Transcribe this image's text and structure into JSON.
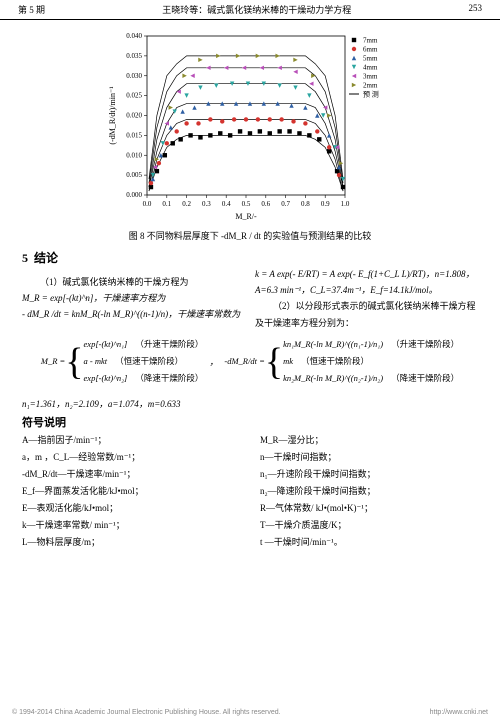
{
  "header": {
    "issue": "第 5 期",
    "title": "王晓玲等：碱式氯化镁纳米棒的干燥动力学方程",
    "page": "253"
  },
  "chart": {
    "type": "scatter-line",
    "xlabel": "M_R/-",
    "ylabel": "(-dM_R/dt)/min⁻¹",
    "xlim": [
      0,
      1.0
    ],
    "ylim": [
      0,
      0.04
    ],
    "xtick_step": 0.1,
    "yticks": [
      0.0,
      0.005,
      0.01,
      0.015,
      0.02,
      0.025,
      0.03,
      0.035,
      0.04
    ],
    "background_color": "#ffffff",
    "axis_color": "#000000",
    "tick_fontsize": 7,
    "label_fontsize": 8,
    "legend": {
      "position": "top-right",
      "items": [
        {
          "label": "7mm",
          "color": "#000000",
          "marker": "square"
        },
        {
          "label": "6mm",
          "color": "#d4342f",
          "marker": "circle"
        },
        {
          "label": "5mm",
          "color": "#2e5fa3",
          "marker": "triangle-up"
        },
        {
          "label": "4mm",
          "color": "#2aa5a0",
          "marker": "triangle-down"
        },
        {
          "label": "3mm",
          "color": "#b84fb8",
          "marker": "triangle-left"
        },
        {
          "label": "2mm",
          "color": "#8a8a2e",
          "marker": "triangle-right"
        },
        {
          "label": "预 测",
          "color": "#000000",
          "marker": "line"
        }
      ]
    },
    "series": [
      {
        "name": "7mm",
        "color": "#000000",
        "marker": "square",
        "data": [
          [
            0.02,
            0.002
          ],
          [
            0.05,
            0.006
          ],
          [
            0.09,
            0.01
          ],
          [
            0.13,
            0.013
          ],
          [
            0.17,
            0.014
          ],
          [
            0.22,
            0.015
          ],
          [
            0.27,
            0.0145
          ],
          [
            0.32,
            0.015
          ],
          [
            0.37,
            0.0155
          ],
          [
            0.42,
            0.015
          ],
          [
            0.47,
            0.016
          ],
          [
            0.52,
            0.0155
          ],
          [
            0.57,
            0.016
          ],
          [
            0.62,
            0.0155
          ],
          [
            0.67,
            0.016
          ],
          [
            0.72,
            0.016
          ],
          [
            0.77,
            0.0155
          ],
          [
            0.82,
            0.015
          ],
          [
            0.87,
            0.014
          ],
          [
            0.92,
            0.011
          ],
          [
            0.96,
            0.006
          ],
          [
            0.99,
            0.002
          ]
        ]
      },
      {
        "name": "6mm",
        "color": "#d4342f",
        "marker": "circle",
        "data": [
          [
            0.02,
            0.003
          ],
          [
            0.06,
            0.008
          ],
          [
            0.1,
            0.013
          ],
          [
            0.15,
            0.016
          ],
          [
            0.2,
            0.018
          ],
          [
            0.26,
            0.018
          ],
          [
            0.32,
            0.019
          ],
          [
            0.38,
            0.0185
          ],
          [
            0.44,
            0.019
          ],
          [
            0.5,
            0.019
          ],
          [
            0.56,
            0.019
          ],
          [
            0.62,
            0.019
          ],
          [
            0.68,
            0.019
          ],
          [
            0.74,
            0.0185
          ],
          [
            0.8,
            0.018
          ],
          [
            0.86,
            0.016
          ],
          [
            0.92,
            0.012
          ],
          [
            0.97,
            0.005
          ]
        ]
      },
      {
        "name": "5mm",
        "color": "#2e5fa3",
        "marker": "triangle-up",
        "data": [
          [
            0.03,
            0.004
          ],
          [
            0.07,
            0.01
          ],
          [
            0.12,
            0.017
          ],
          [
            0.18,
            0.021
          ],
          [
            0.24,
            0.022
          ],
          [
            0.31,
            0.023
          ],
          [
            0.38,
            0.023
          ],
          [
            0.45,
            0.023
          ],
          [
            0.52,
            0.023
          ],
          [
            0.59,
            0.023
          ],
          [
            0.66,
            0.023
          ],
          [
            0.73,
            0.0225
          ],
          [
            0.8,
            0.022
          ],
          [
            0.86,
            0.02
          ],
          [
            0.92,
            0.015
          ],
          [
            0.97,
            0.007
          ]
        ]
      },
      {
        "name": "4mm",
        "color": "#2aa5a0",
        "marker": "triangle-down",
        "data": [
          [
            0.03,
            0.005
          ],
          [
            0.08,
            0.013
          ],
          [
            0.14,
            0.021
          ],
          [
            0.2,
            0.025
          ],
          [
            0.27,
            0.027
          ],
          [
            0.35,
            0.0275
          ],
          [
            0.43,
            0.028
          ],
          [
            0.51,
            0.028
          ],
          [
            0.59,
            0.028
          ],
          [
            0.67,
            0.0275
          ],
          [
            0.75,
            0.027
          ],
          [
            0.82,
            0.025
          ],
          [
            0.89,
            0.02
          ],
          [
            0.95,
            0.012
          ],
          [
            0.99,
            0.004
          ]
        ]
      },
      {
        "name": "3mm",
        "color": "#b84fb8",
        "marker": "triangle-left",
        "data": [
          [
            0.04,
            0.007
          ],
          [
            0.1,
            0.018
          ],
          [
            0.16,
            0.026
          ],
          [
            0.23,
            0.03
          ],
          [
            0.31,
            0.032
          ],
          [
            0.4,
            0.032
          ],
          [
            0.49,
            0.032
          ],
          [
            0.58,
            0.032
          ],
          [
            0.67,
            0.032
          ],
          [
            0.75,
            0.031
          ],
          [
            0.83,
            0.028
          ],
          [
            0.9,
            0.022
          ],
          [
            0.96,
            0.012
          ]
        ]
      },
      {
        "name": "2mm",
        "color": "#8a8a2e",
        "marker": "triangle-right",
        "data": [
          [
            0.05,
            0.009
          ],
          [
            0.12,
            0.022
          ],
          [
            0.19,
            0.03
          ],
          [
            0.27,
            0.034
          ],
          [
            0.36,
            0.035
          ],
          [
            0.46,
            0.035
          ],
          [
            0.56,
            0.035
          ],
          [
            0.66,
            0.035
          ],
          [
            0.75,
            0.034
          ],
          [
            0.84,
            0.03
          ],
          [
            0.92,
            0.02
          ],
          [
            0.98,
            0.008
          ]
        ]
      }
    ],
    "prediction_curves": [
      [
        [
          0.01,
          0.001
        ],
        [
          0.05,
          0.007
        ],
        [
          0.1,
          0.012
        ],
        [
          0.15,
          0.014
        ],
        [
          0.2,
          0.015
        ],
        [
          0.8,
          0.015
        ],
        [
          0.85,
          0.014
        ],
        [
          0.9,
          0.012
        ],
        [
          0.95,
          0.007
        ],
        [
          0.99,
          0.001
        ]
      ],
      [
        [
          0.01,
          0.001
        ],
        [
          0.05,
          0.009
        ],
        [
          0.1,
          0.015
        ],
        [
          0.15,
          0.018
        ],
        [
          0.2,
          0.019
        ],
        [
          0.8,
          0.019
        ],
        [
          0.85,
          0.018
        ],
        [
          0.9,
          0.015
        ],
        [
          0.95,
          0.009
        ],
        [
          0.99,
          0.001
        ]
      ],
      [
        [
          0.01,
          0.002
        ],
        [
          0.05,
          0.011
        ],
        [
          0.1,
          0.018
        ],
        [
          0.15,
          0.022
        ],
        [
          0.2,
          0.023
        ],
        [
          0.8,
          0.023
        ],
        [
          0.85,
          0.022
        ],
        [
          0.9,
          0.018
        ],
        [
          0.95,
          0.011
        ],
        [
          0.99,
          0.002
        ]
      ],
      [
        [
          0.01,
          0.002
        ],
        [
          0.05,
          0.014
        ],
        [
          0.1,
          0.022
        ],
        [
          0.15,
          0.026
        ],
        [
          0.2,
          0.028
        ],
        [
          0.8,
          0.028
        ],
        [
          0.85,
          0.026
        ],
        [
          0.9,
          0.022
        ],
        [
          0.95,
          0.014
        ],
        [
          0.99,
          0.002
        ]
      ],
      [
        [
          0.01,
          0.003
        ],
        [
          0.05,
          0.017
        ],
        [
          0.1,
          0.026
        ],
        [
          0.15,
          0.03
        ],
        [
          0.2,
          0.032
        ],
        [
          0.8,
          0.032
        ],
        [
          0.85,
          0.03
        ],
        [
          0.9,
          0.026
        ],
        [
          0.95,
          0.017
        ],
        [
          0.99,
          0.003
        ]
      ],
      [
        [
          0.01,
          0.004
        ],
        [
          0.05,
          0.02
        ],
        [
          0.1,
          0.03
        ],
        [
          0.15,
          0.033
        ],
        [
          0.2,
          0.035
        ],
        [
          0.8,
          0.035
        ],
        [
          0.85,
          0.033
        ],
        [
          0.9,
          0.03
        ],
        [
          0.95,
          0.02
        ],
        [
          0.99,
          0.004
        ]
      ]
    ]
  },
  "caption": "图 8  不同物料层厚度下 -dM_R / dt 的实验值与预测结果的比较",
  "section": {
    "num": "5",
    "title": "结论"
  },
  "text": {
    "p1": "（1）碱式氯化镁纳米棒的干燥方程为",
    "eq1": "M_R = exp[-(kt)^n]，干燥速率方程为",
    "eq2": "- dM_R /dt = knM_R(-ln M_R)^((n-1)/n)，干燥速率常数为",
    "eqk": "k = A exp(- E/RT) = A exp(- E_f(1+C_L L)/RT)，n=1.808，",
    "eqA": "A=6.3 min⁻¹，C_L=37.4m⁻¹，E_f=14.1kJ/mol。",
    "p2": "（2）以分段形式表示的碱式氯化镁纳米棒干燥方程及干燥速率方程分别为："
  },
  "piecewise": {
    "MR_label": "M_R =",
    "MR": [
      {
        "expr": "exp[-(kt)^n₁]",
        "note": "（升速干燥阶段）"
      },
      {
        "expr": "a - mkt",
        "note": "（恒速干燥阶段）"
      },
      {
        "expr": "exp[-(kt)^n₂]",
        "note": "（降速干燥阶段）"
      }
    ],
    "dMR_label": "-dM_R/dt =",
    "dMR": [
      {
        "expr": "kn₁M_R(-ln M_R)^((n₁-1)/n₁)",
        "note": "（升速干燥阶段）"
      },
      {
        "expr": "mk",
        "note": "（恒速干燥阶段）"
      },
      {
        "expr": "kn₂M_R(-ln M_R)^((n₂-1)/n₂)",
        "note": "（降速干燥阶段）"
      }
    ]
  },
  "params": "n₁=1.361，n₂=2.109，a=1.074，m=0.633",
  "symbols_title": "符号说明",
  "symbols": {
    "left": [
      "A—指前因子/min⁻¹；",
      "a，m ，C_L—经验常数/m⁻¹；",
      "",
      "-dM_R/dt—干燥速率/min⁻¹；",
      "E_f—界面蒸发活化能/kJ•mol；",
      "E—表观活化能/kJ•mol；",
      "k—干燥速率常数/ min⁻¹；",
      "L—物料层厚度/m；"
    ],
    "right": [
      "M_R—湿分比；",
      "n—干燥时间指数；",
      "",
      "n₁—升速阶段干燥时间指数；",
      "n₂—降速阶段干燥时间指数；",
      "R—气体常数/ kJ•(mol•K)⁻¹；",
      "T—干燥介质温度/K；",
      "t —干燥时间/min⁻¹。"
    ]
  },
  "footer": {
    "left": "© 1994-2014 China Academic Journal Electronic Publishing House. All rights reserved.",
    "right": "http://www.cnki.net"
  }
}
